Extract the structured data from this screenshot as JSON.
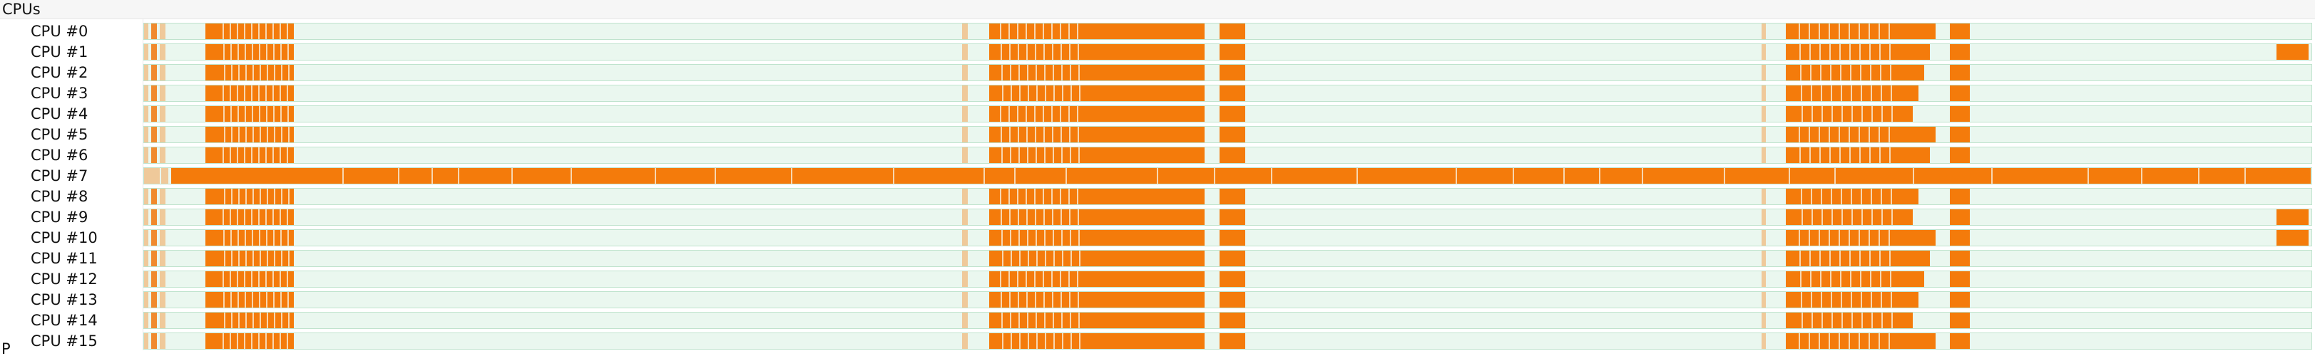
{
  "timeline": {
    "section_title": "CPUs",
    "colors": {
      "busy": "#f47b0b",
      "partial": "#efc99a",
      "idle": "#eaf7ef",
      "track_border": "#bfe3cd"
    },
    "rows": [
      {
        "label": "CPU #0"
      },
      {
        "label": "CPU #1"
      },
      {
        "label": "CPU #2"
      },
      {
        "label": "CPU #3"
      },
      {
        "label": "CPU #4"
      },
      {
        "label": "CPU #5"
      },
      {
        "label": "CPU #6"
      },
      {
        "label": "CPU #7"
      },
      {
        "label": "CPU #8"
      },
      {
        "label": "CPU #9"
      },
      {
        "label": "CPU #10"
      },
      {
        "label": "CPU #11"
      },
      {
        "label": "CPU #12"
      },
      {
        "label": "CPU #13"
      },
      {
        "label": "CPU #14"
      },
      {
        "label": "CPU #15"
      }
    ],
    "next_section_glyph": "P"
  }
}
